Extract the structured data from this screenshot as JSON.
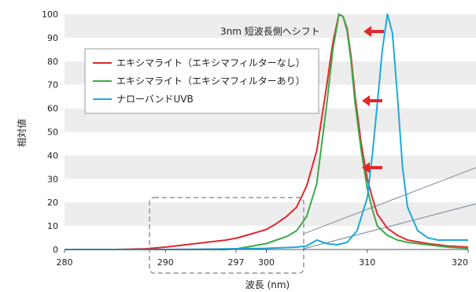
{
  "chart_data": {
    "type": "line",
    "xlabel": "波長 (nm)",
    "ylabel": "相対値",
    "xlim": [
      280,
      320
    ],
    "ylim": [
      0,
      100
    ],
    "x_ticks": [
      280,
      290,
      297,
      300,
      310,
      320
    ],
    "y_ticks": [
      0,
      10,
      20,
      30,
      40,
      50,
      60,
      70,
      80,
      90,
      100
    ],
    "grid": "horizontal alternating bands",
    "legend_position": "upper-left",
    "annotation": "3nm 短波長側へシフト",
    "series": [
      {
        "name": "エキシマライト（エキシマフィルターなし）",
        "color": "#e0282e",
        "x": [
          280,
          285,
          288,
          290,
          292,
          294,
          296,
          297,
          298,
          300,
          301,
          302,
          303,
          304,
          305,
          306,
          306.6,
          307.2,
          307.6,
          308,
          308.4,
          308.8,
          309.4,
          310,
          310.5,
          311,
          312,
          313,
          314,
          316,
          318,
          320
        ],
        "y": [
          0,
          0,
          0.3,
          1,
          2,
          3,
          4,
          4.8,
          6,
          8.5,
          11,
          14,
          18,
          27,
          42,
          70,
          88,
          100,
          99,
          94,
          82,
          65,
          45,
          30,
          22,
          15,
          9,
          6,
          4,
          2.5,
          1.5,
          1
        ]
      },
      {
        "name": "エキシマライト（エキシマフィルターあり）",
        "color": "#3daa47",
        "x": [
          280,
          290,
          296,
          297,
          298,
          300,
          301,
          302,
          303,
          304,
          305,
          306,
          306.6,
          307.2,
          307.6,
          308,
          308.4,
          308.8,
          309.4,
          310,
          310.5,
          311,
          312,
          313,
          314,
          316,
          318,
          320
        ],
        "y": [
          0,
          0,
          0,
          0.2,
          1,
          2.5,
          4,
          5.5,
          8,
          14,
          28,
          62,
          85,
          100,
          99,
          93,
          80,
          62,
          42,
          26,
          17,
          10,
          6,
          4,
          3,
          2,
          1,
          0.5
        ]
      },
      {
        "name": "ナローバンドUVB",
        "color": "#1ea9dc",
        "x": [
          280,
          290,
          295,
          300,
          303,
          304,
          305,
          306,
          307,
          308,
          309,
          310,
          310.5,
          311,
          311.5,
          312,
          312.5,
          313,
          313.5,
          314,
          315,
          316,
          317,
          318,
          319,
          320
        ],
        "y": [
          0,
          0,
          0.2,
          0.5,
          1,
          1.5,
          4,
          2.5,
          2,
          3,
          8,
          22,
          40,
          62,
          85,
          100,
          92,
          65,
          35,
          18,
          8,
          5,
          4,
          4,
          4,
          4
        ]
      }
    ]
  }
}
